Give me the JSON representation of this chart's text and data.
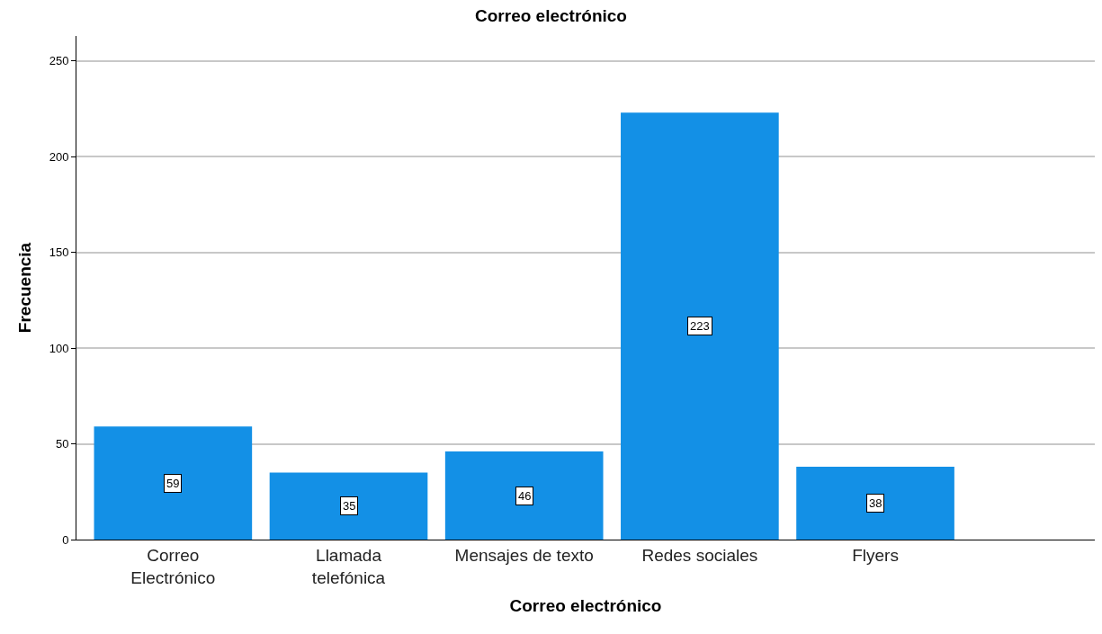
{
  "chart_data": {
    "type": "bar",
    "title": "Correo electrónico",
    "xlabel": "Correo electrónico",
    "ylabel": "Frecuencia",
    "categories": [
      "Correo Electrónico",
      "Llamada telefónica",
      "Mensajes de texto",
      "Redes sociales",
      "Flyers"
    ],
    "values": [
      59,
      35,
      46,
      223,
      38
    ],
    "color": "#1390e6",
    "ylim": [
      0,
      263
    ],
    "yticks": [
      0,
      50,
      100,
      150,
      200,
      250
    ],
    "grid": "y",
    "legend": false,
    "data_labels": true
  }
}
